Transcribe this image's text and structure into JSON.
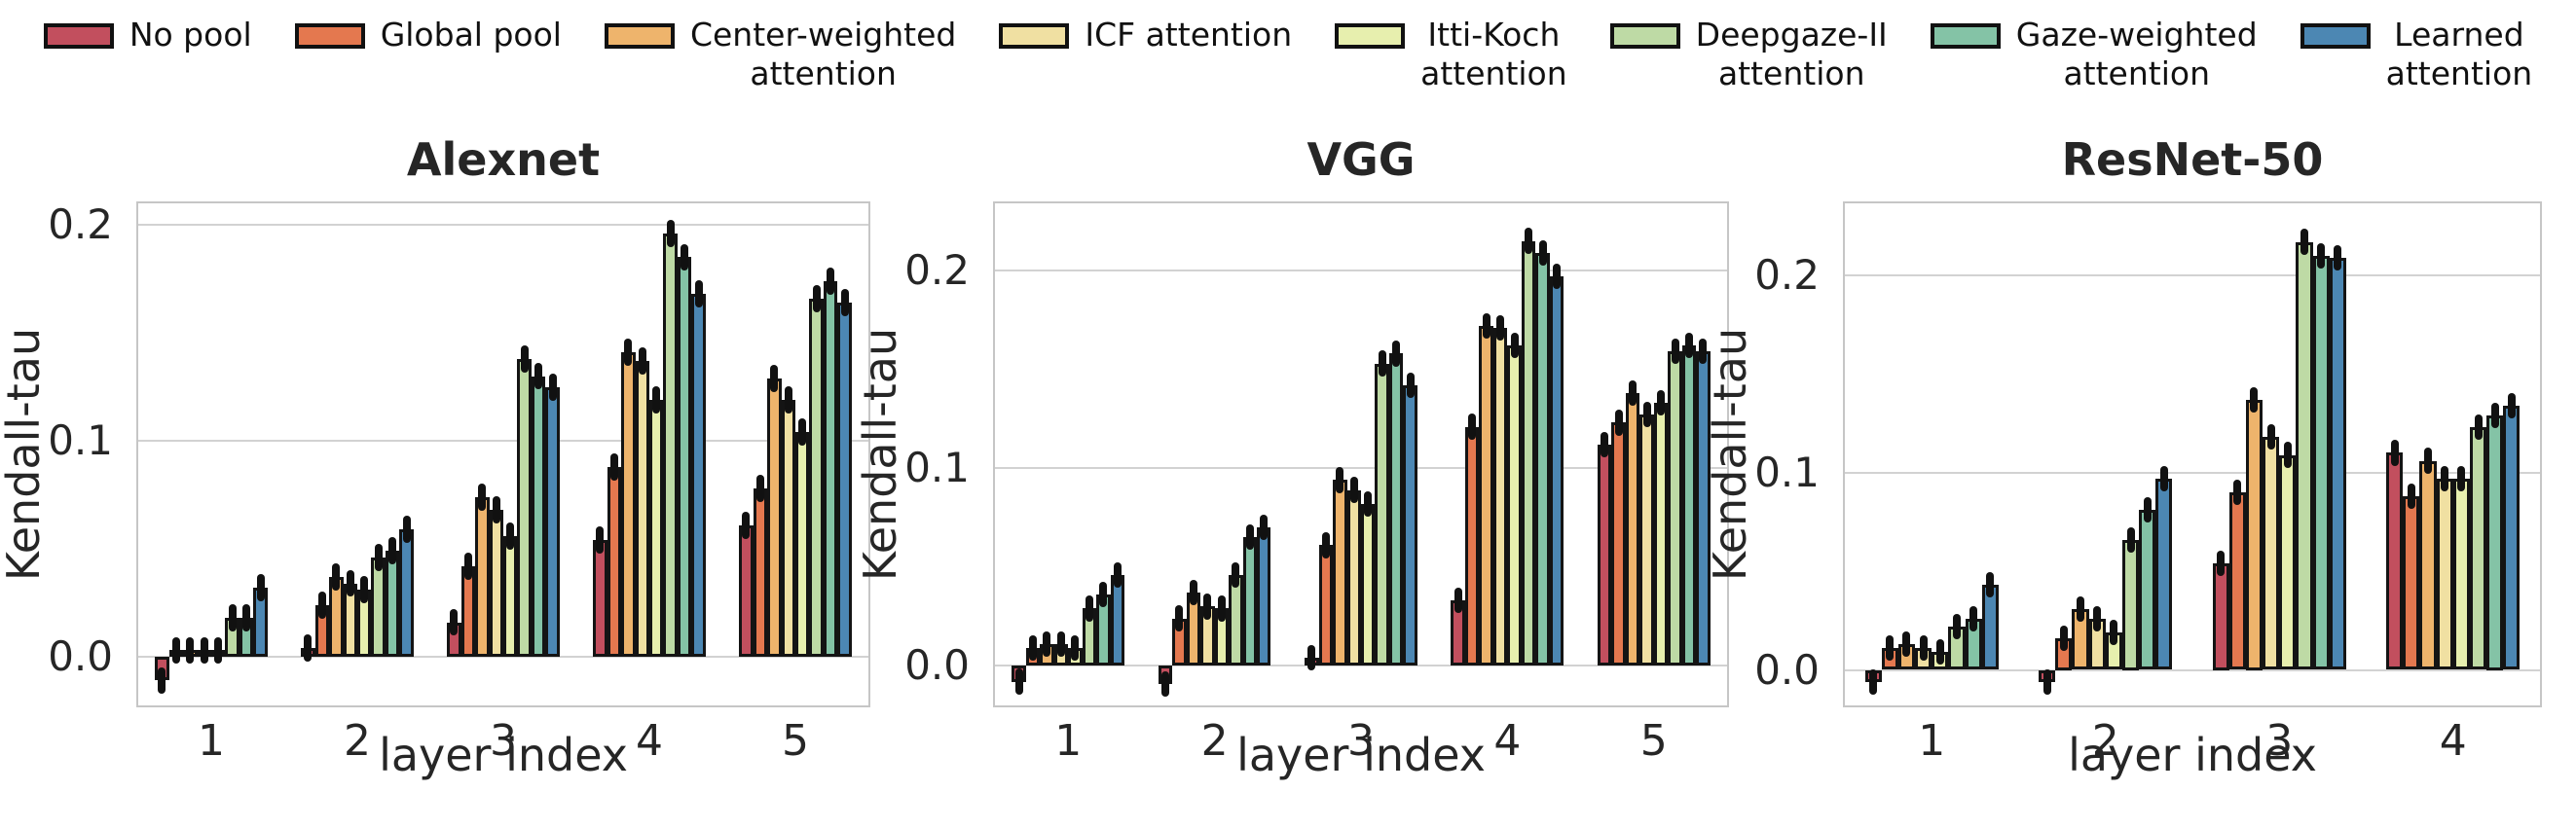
{
  "legend": {
    "position": "top",
    "entries": [
      {
        "label": "No pool",
        "color": "#c24f5e"
      },
      {
        "label": "Global pool",
        "color": "#e4784f"
      },
      {
        "label": "Center-weighted\nattention",
        "color": "#eeb46c"
      },
      {
        "label": "ICF attention",
        "color": "#f0e0a2"
      },
      {
        "label": "Itti-Koch\nattention",
        "color": "#e7efae"
      },
      {
        "label": "Deepgaze-II\nattention",
        "color": "#bedaa5"
      },
      {
        "label": "Gaze-weighted\nattention",
        "color": "#84c3a6"
      },
      {
        "label": "Learned\nattention",
        "color": "#4c87b3"
      }
    ]
  },
  "style": {
    "bar_edge_color": "#141414",
    "grid_color": "#d2d2d2",
    "spine_color": "#c6c6c6",
    "text_color": "#262626"
  },
  "chart_data": [
    {
      "type": "bar",
      "title": "Alexnet",
      "xlabel": "layer index",
      "ylabel": "Kendall-tau",
      "categories": [
        "1",
        "2",
        "3",
        "4",
        "5"
      ],
      "yticks": [
        0.0,
        0.1,
        0.2
      ],
      "ytick_labels": [
        "0.0",
        "0.1",
        "0.2"
      ],
      "ylim": [
        -0.0225,
        0.21
      ],
      "grid": true,
      "legend_position": "top",
      "error_bar": 0.004,
      "series": [
        {
          "name": "No pool",
          "values": [
            -0.011,
            0.004,
            0.016,
            0.054,
            0.061
          ]
        },
        {
          "name": "Global pool",
          "values": [
            0.003,
            0.024,
            0.042,
            0.088,
            0.078
          ]
        },
        {
          "name": "Center-weighted attention",
          "values": [
            0.003,
            0.037,
            0.074,
            0.141,
            0.129
          ]
        },
        {
          "name": "ICF attention",
          "values": [
            0.003,
            0.034,
            0.068,
            0.137,
            0.119
          ]
        },
        {
          "name": "Itti-Koch attention",
          "values": [
            0.003,
            0.031,
            0.056,
            0.119,
            0.104
          ]
        },
        {
          "name": "Deepgaze-II attention",
          "values": [
            0.018,
            0.046,
            0.138,
            0.196,
            0.166
          ]
        },
        {
          "name": "Gaze-weighted attention",
          "values": [
            0.018,
            0.049,
            0.13,
            0.185,
            0.174
          ]
        },
        {
          "name": "Learned attention",
          "values": [
            0.032,
            0.059,
            0.125,
            0.168,
            0.164
          ]
        }
      ]
    },
    {
      "type": "bar",
      "title": "VGG",
      "xlabel": "layer index",
      "ylabel": "Kendall-tau",
      "categories": [
        "1",
        "2",
        "3",
        "4",
        "5"
      ],
      "yticks": [
        0.0,
        0.1,
        0.2
      ],
      "ytick_labels": [
        "0.0",
        "0.1",
        "0.2"
      ],
      "ylim": [
        -0.02,
        0.234
      ],
      "grid": true,
      "legend_position": "top",
      "error_bar": 0.004,
      "series": [
        {
          "name": "No pool",
          "values": [
            -0.008,
            -0.009,
            0.004,
            0.033,
            0.112
          ]
        },
        {
          "name": "Global pool",
          "values": [
            0.009,
            0.024,
            0.061,
            0.121,
            0.123
          ]
        },
        {
          "name": "Center-weighted attention",
          "values": [
            0.011,
            0.037,
            0.094,
            0.172,
            0.138
          ]
        },
        {
          "name": "ICF attention",
          "values": [
            0.011,
            0.03,
            0.089,
            0.171,
            0.127
          ]
        },
        {
          "name": "Itti-Koch attention",
          "values": [
            0.009,
            0.029,
            0.082,
            0.162,
            0.133
          ]
        },
        {
          "name": "Deepgaze-II attention",
          "values": [
            0.029,
            0.046,
            0.153,
            0.215,
            0.159
          ]
        },
        {
          "name": "Gaze-weighted attention",
          "values": [
            0.036,
            0.065,
            0.158,
            0.209,
            0.162
          ]
        },
        {
          "name": "Learned attention",
          "values": [
            0.046,
            0.07,
            0.142,
            0.197,
            0.159
          ]
        }
      ]
    },
    {
      "type": "bar",
      "title": "ResNet-50",
      "xlabel": "layer index",
      "ylabel": "Kendall-tau",
      "categories": [
        "1",
        "2",
        "3",
        "4"
      ],
      "yticks": [
        0.0,
        0.1,
        0.2
      ],
      "ytick_labels": [
        "0.0",
        "0.1",
        "0.2"
      ],
      "ylim": [
        -0.018,
        0.2365
      ],
      "grid": true,
      "legend_position": "top",
      "error_bar": 0.004,
      "series": [
        {
          "name": "No pool",
          "values": [
            -0.006,
            -0.006,
            0.054,
            0.11
          ]
        },
        {
          "name": "Global pool",
          "values": [
            0.011,
            0.016,
            0.09,
            0.088
          ]
        },
        {
          "name": "Center-weighted attention",
          "values": [
            0.013,
            0.031,
            0.137,
            0.106
          ]
        },
        {
          "name": "ICF attention",
          "values": [
            0.011,
            0.026,
            0.118,
            0.097
          ]
        },
        {
          "name": "Itti-Koch attention",
          "values": [
            0.009,
            0.019,
            0.109,
            0.097
          ]
        },
        {
          "name": "Deepgaze-II attention",
          "values": [
            0.022,
            0.066,
            0.217,
            0.123
          ]
        },
        {
          "name": "Gaze-weighted attention",
          "values": [
            0.026,
            0.081,
            0.21,
            0.129
          ]
        },
        {
          "name": "Learned attention",
          "values": [
            0.043,
            0.097,
            0.209,
            0.134
          ]
        }
      ]
    }
  ]
}
